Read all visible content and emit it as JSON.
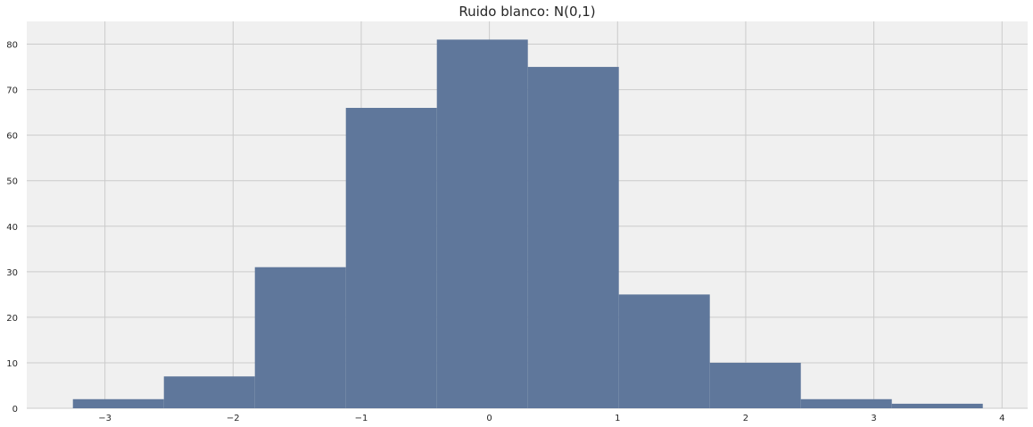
{
  "chart_data": {
    "type": "bar",
    "title": "Ruido blanco: N(0,1)",
    "xlabel": "",
    "ylabel": "",
    "bin_edges": [
      -3.25,
      -2.54,
      -1.83,
      -1.12,
      -0.41,
      0.3,
      1.01,
      1.72,
      2.43,
      3.14,
      3.85
    ],
    "values": [
      2,
      7,
      31,
      66,
      81,
      75,
      25,
      10,
      2,
      1
    ],
    "xlim": [
      -3.61,
      4.2
    ],
    "ylim": [
      0,
      85
    ],
    "xticks": [
      -3,
      -2,
      -1,
      0,
      1,
      2,
      3,
      4
    ],
    "xtick_labels": [
      "−3",
      "−2",
      "−1",
      "0",
      "1",
      "2",
      "3",
      "4"
    ],
    "yticks": [
      0,
      10,
      20,
      30,
      40,
      50,
      60,
      70,
      80
    ],
    "ytick_labels": [
      "0",
      "10",
      "20",
      "30",
      "40",
      "50",
      "60",
      "70",
      "80"
    ],
    "grid": true,
    "colors": {
      "bar": "#5f779b",
      "plot_bg": "#f0f0f0",
      "grid": "#cbcbcb"
    }
  }
}
